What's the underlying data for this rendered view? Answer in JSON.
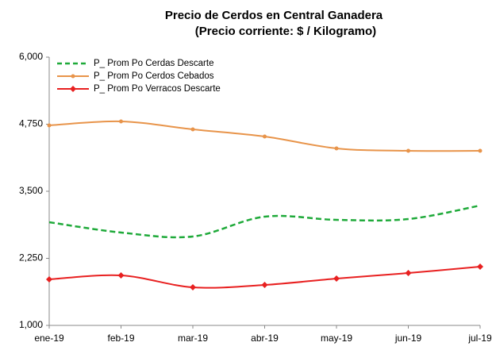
{
  "chart_data": {
    "type": "line",
    "title": [
      "Precio de Cerdos en Central Ganadera",
      "(Precio corriente: $ / Kilogramo)"
    ],
    "categories": [
      "ene-19",
      "feb-19",
      "mar-19",
      "abr-19",
      "may-19",
      "jun-19",
      "jul-19"
    ],
    "series": [
      {
        "name": "P_ Prom Po Cerdas Descarte",
        "color": "#1faa3a",
        "dashed": true,
        "marker": "none",
        "values": [
          2923,
          2731,
          2657,
          3027,
          2967,
          2982,
          3234
        ]
      },
      {
        "name": "P_ Prom Po Cerdos Cebados",
        "color": "#e8944a",
        "dashed": false,
        "marker": "circle",
        "values": [
          4728,
          4802,
          4654,
          4521,
          4299,
          4254,
          4254
        ]
      },
      {
        "name": "P_ Prom Po Verracos Descarte",
        "color": "#e82020",
        "dashed": false,
        "marker": "diamond",
        "values": [
          1858,
          1932,
          1710,
          1754,
          1873,
          1976,
          2095
        ]
      }
    ],
    "ylim": [
      1000,
      6000
    ],
    "yticks": [
      {
        "value": 1000,
        "label": "1,000"
      },
      {
        "value": 2250,
        "label": "2,250"
      },
      {
        "value": 3500,
        "label": "3,500"
      },
      {
        "value": 4750,
        "label": "4,750"
      },
      {
        "value": 6000,
        "label": "6,000"
      }
    ],
    "grid": false,
    "legend": "upper-left"
  }
}
